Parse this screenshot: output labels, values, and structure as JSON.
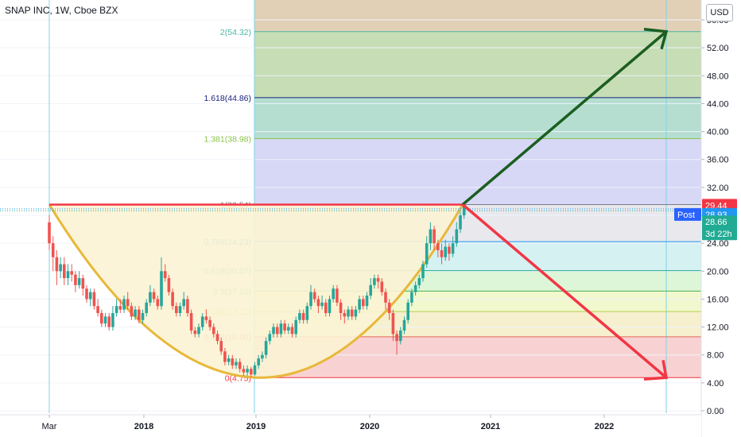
{
  "header": {
    "title": "SNAP INC, 1W, Cboe BZX",
    "currency": "USD"
  },
  "chart_data": {
    "type": "candlestick",
    "symbol": "SNAP INC",
    "interval": "1W",
    "exchange": "Cboe BZX",
    "x_ticks": [
      "Mar",
      "2018",
      "2019",
      "2020",
      "2021",
      "2022"
    ],
    "y_ticks": [
      "0.00",
      "4.00",
      "8.00",
      "12.00",
      "16.00",
      "20.00",
      "24.00",
      "28.00",
      "32.00",
      "36.00",
      "40.00",
      "44.00",
      "48.00",
      "52.00",
      "56.00"
    ],
    "ylim": [
      -0.5,
      58
    ],
    "fib_levels": [
      {
        "label": "0(4.75)",
        "value": 4.75,
        "color": "#f23645",
        "fill": "#f7caca"
      },
      {
        "label": "0.236(10.60)",
        "value": 10.6,
        "color": "#e3685a",
        "fill": "#f4edc7"
      },
      {
        "label": "0.382(14.22)",
        "value": 14.22,
        "color": "#b9cc4a",
        "fill": "#eef7c6"
      },
      {
        "label": "0.5(17.15)",
        "value": 17.15,
        "color": "#4caf50",
        "fill": "#d6f5d0"
      },
      {
        "label": "0.618(20.07)",
        "value": 20.07,
        "color": "#22ab94",
        "fill": "#cfeef0"
      },
      {
        "label": "0.786(24.23)",
        "value": 24.23,
        "color": "#2196f3",
        "fill": "#e4e4ea"
      },
      {
        "label": "1(29.54)",
        "value": 29.54,
        "color": "#787b86",
        "fill": "#d0d0f5"
      },
      {
        "label": "1.381(38.98)",
        "value": 38.98,
        "color": "#8bc34a",
        "fill": "#a8d8c8"
      },
      {
        "label": "1.618(44.86)",
        "value": 44.86,
        "color": "#1a237e",
        "fill": "#bcd7a8"
      },
      {
        "label": "2(54.32)",
        "value": 54.32,
        "color": "#4db6ac",
        "fill": "#dcc8a8"
      }
    ],
    "price_labels": [
      {
        "text": "29.44",
        "value": 29.44,
        "color": "#f23645"
      },
      {
        "text": "Post",
        "value": 28.93,
        "color": "#2962ff"
      },
      {
        "text": "28.93",
        "value": 28.93,
        "color": "#2196f3"
      },
      {
        "text": "28.66",
        "value": 28.66,
        "color": "#22ab94"
      },
      {
        "text": "3d 22h",
        "value": 27.3,
        "color": "#22ab94"
      }
    ],
    "candles": [
      [
        0,
        27.0,
        24.0,
        28.0,
        23.0
      ],
      [
        0.5,
        24.0,
        22.0,
        25.0,
        20.0
      ],
      [
        1,
        22.0,
        20.0,
        23.0,
        18.0
      ],
      [
        1.5,
        20.0,
        21.0,
        22.0,
        19.0
      ],
      [
        2,
        21.0,
        19.0,
        22.0,
        18.0
      ],
      [
        2.5,
        19.0,
        20.0,
        21.0,
        18.0
      ],
      [
        3,
        20.0,
        19.5,
        21.0,
        18.5
      ],
      [
        3.5,
        19.5,
        18.0,
        20.0,
        17.0
      ],
      [
        4,
        18.0,
        19.0,
        20.0,
        17.5
      ],
      [
        4.5,
        19.0,
        17.5,
        19.5,
        16.5
      ],
      [
        5,
        17.5,
        16.0,
        18.0,
        15.5
      ],
      [
        5.5,
        16.0,
        17.0,
        17.5,
        15.0
      ],
      [
        6,
        17.0,
        15.0,
        17.5,
        14.5
      ],
      [
        6.5,
        15.0,
        14.0,
        16.0,
        13.5
      ],
      [
        7,
        14.0,
        12.5,
        14.5,
        12.0
      ],
      [
        7.5,
        12.5,
        13.5,
        14.0,
        12.0
      ],
      [
        8,
        13.5,
        12.0,
        14.0,
        11.5
      ],
      [
        8.5,
        12.0,
        14.0,
        15.0,
        11.5
      ],
      [
        9,
        14.0,
        15.0,
        16.0,
        13.5
      ],
      [
        9.5,
        15.0,
        14.5,
        16.0,
        14.0
      ],
      [
        10,
        14.5,
        16.0,
        16.5,
        14.0
      ],
      [
        10.5,
        16.0,
        15.0,
        17.0,
        14.5
      ],
      [
        11,
        15.0,
        13.5,
        15.5,
        13.0
      ],
      [
        11.5,
        13.5,
        14.5,
        15.0,
        13.0
      ],
      [
        12,
        14.5,
        13.0,
        15.0,
        12.5
      ],
      [
        12.5,
        13.0,
        14.0,
        14.5,
        12.5
      ],
      [
        13,
        14.0,
        15.5,
        16.0,
        13.5
      ],
      [
        13.5,
        15.5,
        17.0,
        18.0,
        15.0
      ],
      [
        14,
        17.0,
        16.0,
        17.5,
        15.5
      ],
      [
        14.5,
        16.0,
        15.0,
        16.5,
        14.5
      ],
      [
        15,
        15.0,
        20.0,
        22.0,
        14.5
      ],
      [
        15.5,
        20.0,
        19.0,
        21.0,
        18.5
      ],
      [
        16,
        19.0,
        17.0,
        19.5,
        16.5
      ],
      [
        16.5,
        17.0,
        15.0,
        17.5,
        14.5
      ],
      [
        17,
        15.0,
        14.0,
        15.5,
        13.5
      ],
      [
        17.5,
        14.0,
        15.0,
        15.5,
        13.5
      ],
      [
        18,
        15.0,
        16.0,
        17.0,
        14.5
      ],
      [
        18.5,
        16.0,
        14.0,
        16.5,
        13.5
      ],
      [
        19,
        14.0,
        11.5,
        14.5,
        11.0
      ],
      [
        19.5,
        11.5,
        11.0,
        12.0,
        10.5
      ],
      [
        20,
        11.0,
        12.0,
        12.5,
        10.5
      ],
      [
        20.5,
        12.0,
        13.5,
        14.0,
        11.5
      ],
      [
        21,
        13.5,
        13.0,
        14.5,
        12.5
      ],
      [
        21.5,
        13.0,
        12.0,
        13.5,
        11.5
      ],
      [
        22,
        12.0,
        11.0,
        12.5,
        10.5
      ],
      [
        22.5,
        11.0,
        10.0,
        11.5,
        9.5
      ],
      [
        23,
        10.0,
        8.5,
        10.5,
        8.0
      ],
      [
        23.5,
        8.5,
        7.0,
        9.0,
        6.5
      ],
      [
        24,
        7.0,
        7.5,
        8.0,
        6.5
      ],
      [
        24.5,
        7.5,
        6.5,
        8.0,
        6.0
      ],
      [
        25,
        6.5,
        7.0,
        7.5,
        6.0
      ],
      [
        25.5,
        7.0,
        6.0,
        7.5,
        5.5
      ],
      [
        26,
        6.0,
        5.5,
        6.5,
        5.0
      ],
      [
        26.5,
        5.5,
        6.0,
        6.5,
        5.0
      ],
      [
        27,
        6.0,
        5.2,
        6.3,
        4.8
      ],
      [
        27.5,
        5.2,
        6.5,
        7.0,
        5.0
      ],
      [
        28,
        6.5,
        7.5,
        8.0,
        6.0
      ],
      [
        28.5,
        7.5,
        8.0,
        8.5,
        7.0
      ],
      [
        29,
        8.0,
        10.0,
        10.5,
        7.5
      ],
      [
        29.5,
        10.0,
        11.0,
        11.5,
        9.5
      ],
      [
        30,
        11.0,
        12.0,
        12.5,
        10.5
      ],
      [
        30.5,
        12.0,
        11.0,
        12.5,
        10.5
      ],
      [
        31,
        11.0,
        12.5,
        13.0,
        10.5
      ],
      [
        31.5,
        12.5,
        11.5,
        13.0,
        11.0
      ],
      [
        32,
        11.5,
        12.0,
        12.5,
        11.0
      ],
      [
        32.5,
        12.0,
        11.0,
        12.5,
        10.5
      ],
      [
        33,
        11.0,
        13.0,
        13.5,
        10.5
      ],
      [
        33.5,
        13.0,
        14.0,
        14.5,
        12.5
      ],
      [
        34,
        14.0,
        13.0,
        14.5,
        12.5
      ],
      [
        34.5,
        13.0,
        15.0,
        15.5,
        12.5
      ],
      [
        35,
        15.0,
        17.0,
        18.0,
        14.5
      ],
      [
        35.5,
        17.0,
        16.0,
        17.5,
        15.5
      ],
      [
        36,
        16.0,
        15.0,
        16.5,
        14.0
      ],
      [
        36.5,
        15.0,
        15.5,
        16.5,
        14.5
      ],
      [
        37,
        15.5,
        14.0,
        16.0,
        13.5
      ],
      [
        37.5,
        14.0,
        16.0,
        16.5,
        13.5
      ],
      [
        38,
        16.0,
        17.5,
        18.0,
        15.5
      ],
      [
        38.5,
        17.5,
        15.5,
        18.0,
        15.0
      ],
      [
        39,
        15.5,
        14.0,
        16.0,
        13.0
      ],
      [
        39.5,
        14.0,
        13.5,
        14.5,
        12.5
      ],
      [
        40,
        13.5,
        14.5,
        15.0,
        13.0
      ],
      [
        40.5,
        14.5,
        13.5,
        15.0,
        13.0
      ],
      [
        41,
        13.5,
        14.5,
        15.0,
        13.0
      ],
      [
        41.5,
        14.5,
        16.0,
        16.5,
        14.0
      ],
      [
        42,
        16.0,
        15.0,
        16.5,
        14.5
      ],
      [
        42.5,
        15.0,
        16.5,
        17.0,
        14.5
      ],
      [
        43,
        16.5,
        18.0,
        19.0,
        16.0
      ],
      [
        43.5,
        18.0,
        19.0,
        19.5,
        17.5
      ],
      [
        44,
        19.0,
        18.5,
        19.5,
        17.5
      ],
      [
        44.5,
        18.5,
        17.0,
        19.0,
        16.5
      ],
      [
        45,
        17.0,
        15.5,
        17.5,
        14.5
      ],
      [
        45.5,
        15.5,
        14.0,
        16.0,
        13.0
      ],
      [
        46,
        14.0,
        11.0,
        14.5,
        10.0
      ],
      [
        46.5,
        11.0,
        10.0,
        11.5,
        8.0
      ],
      [
        47,
        10.0,
        11.5,
        12.0,
        9.5
      ],
      [
        47.5,
        11.5,
        13.0,
        13.5,
        11.0
      ],
      [
        48,
        13.0,
        15.5,
        16.0,
        12.5
      ],
      [
        48.5,
        15.5,
        17.0,
        17.5,
        15.0
      ],
      [
        49,
        17.0,
        18.0,
        18.5,
        16.5
      ],
      [
        49.5,
        18.0,
        19.0,
        19.5,
        17.5
      ],
      [
        50,
        19.0,
        21.0,
        21.5,
        18.5
      ],
      [
        50.5,
        21.0,
        24.0,
        25.0,
        20.5
      ],
      [
        51,
        24.0,
        26.0,
        27.0,
        23.0
      ],
      [
        51.5,
        26.0,
        24.0,
        26.5,
        23.0
      ],
      [
        52,
        24.0,
        23.0,
        24.5,
        22.0
      ],
      [
        52.5,
        23.0,
        22.0,
        24.0,
        21.0
      ],
      [
        53,
        22.0,
        23.5,
        24.5,
        21.5
      ],
      [
        53.5,
        23.5,
        22.5,
        24.0,
        21.5
      ],
      [
        54,
        22.5,
        24.0,
        25.0,
        22.0
      ],
      [
        54.5,
        24.0,
        26.0,
        27.0,
        23.5
      ],
      [
        55,
        26.0,
        28.0,
        28.5,
        25.5
      ],
      [
        55.5,
        28.0,
        29.4,
        29.8,
        27.5
      ]
    ]
  }
}
